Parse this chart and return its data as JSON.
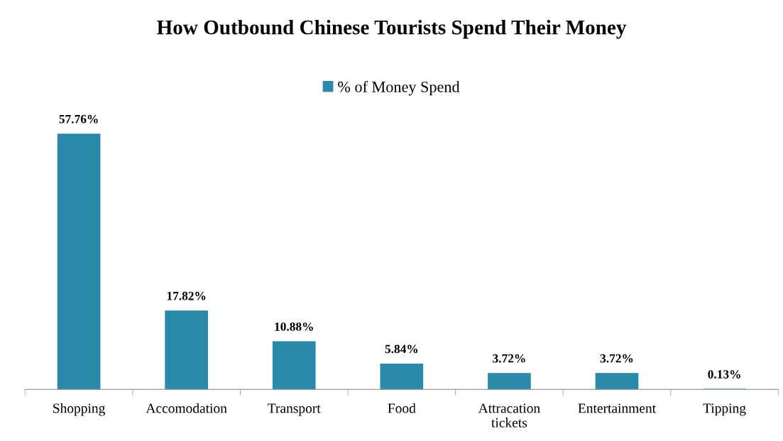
{
  "chart_data": {
    "type": "bar",
    "title": "How Outbound Chinese Tourists Spend Their Money",
    "categories": [
      "Shopping",
      "Accomodation",
      "Transport",
      "Food",
      "Attracation\ntickets",
      "Entertainment",
      "Tipping"
    ],
    "series": [
      {
        "name": "% of Money Spend",
        "color": "#2b88a9",
        "values": [
          57.76,
          17.82,
          10.88,
          5.84,
          3.72,
          3.72,
          0.13
        ],
        "value_labels": [
          "57.76%",
          "17.82%",
          "10.88%",
          "5.84%",
          "3.72%",
          "3.72%",
          "0.13%"
        ]
      }
    ],
    "legend": "top",
    "grid": false
  }
}
